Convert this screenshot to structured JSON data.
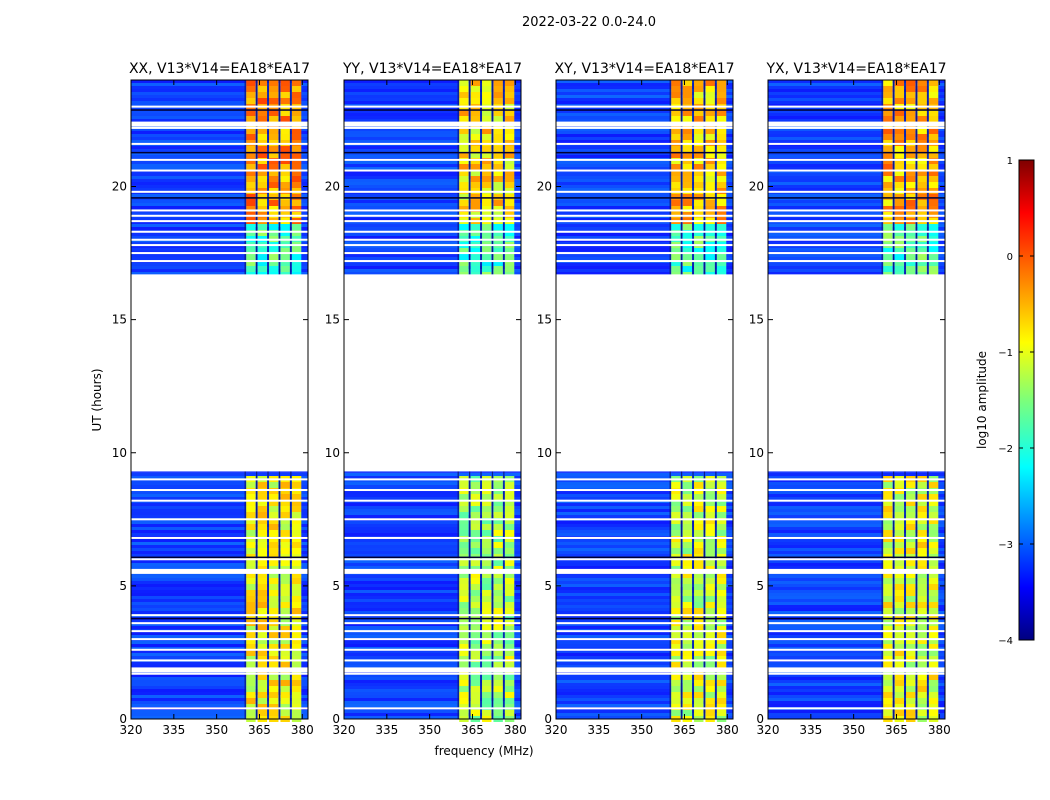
{
  "chart_data": {
    "type": "heatmap",
    "suptitle": "2022-03-22 0.0-24.0",
    "xlabel": "frequency (MHz)",
    "ylabel": "UT (hours)",
    "xlim": [
      320,
      382
    ],
    "ylim": [
      0,
      24
    ],
    "xticks": [
      320,
      335,
      350,
      365,
      380
    ],
    "yticks": [
      0,
      5,
      10,
      15,
      20
    ],
    "data_gap_hours": [
      9.3,
      16.7
    ],
    "rfi_band_mhz": [
      360,
      380
    ],
    "panels": [
      {
        "title": "XX, V13*V14=EA18*EA17",
        "band_level": 0.62
      },
      {
        "title": "YY, V13*V14=EA18*EA17",
        "band_level": 0.55
      },
      {
        "title": "XY, V13*V14=EA18*EA17",
        "band_level": 0.58
      },
      {
        "title": "YX, V13*V14=EA18*EA17",
        "band_level": 0.6
      }
    ],
    "colorbar": {
      "label": "log10 amplitude",
      "min": -4,
      "max": 1,
      "ticks": [
        1,
        0,
        -1,
        -2,
        -3,
        -4
      ]
    }
  }
}
